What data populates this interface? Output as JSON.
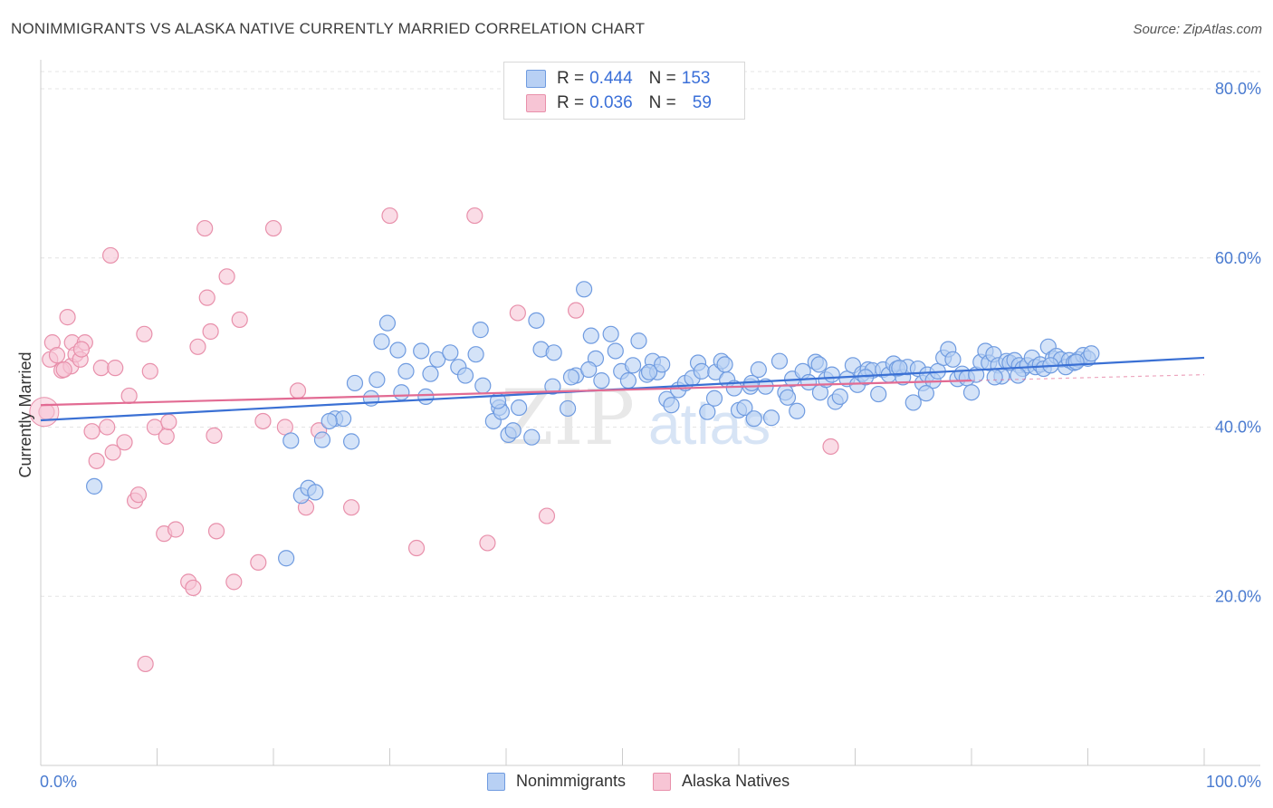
{
  "header": {
    "title": "NONIMMIGRANTS VS ALASKA NATIVE CURRENTLY MARRIED CORRELATION CHART",
    "source": "Source: ZipAtlas.com"
  },
  "legend": {
    "rows": [
      {
        "r_label": "R =",
        "r_value": "0.444",
        "n_label": "N =",
        "n_value": "153"
      },
      {
        "r_label": "R =",
        "r_value": "0.036",
        "n_label": "N =",
        "n_value": "59"
      }
    ]
  },
  "bottom_legend": [
    "Nonimmigrants",
    "Alaska Natives"
  ],
  "colors": {
    "blue_fill": "#b8d0f4",
    "blue_stroke": "#6f9be0",
    "blue_line": "#3a70d4",
    "pink_fill": "#f7c5d5",
    "pink_stroke": "#e890ab",
    "pink_line": "#e26b93",
    "tick_text": "#4a7bd0",
    "grid": "#e4e4e4"
  },
  "chart_data": {
    "type": "scatter",
    "title": "NONIMMIGRANTS VS ALASKA NATIVE CURRENTLY MARRIED CORRELATION CHART",
    "xlabel": "",
    "ylabel": "Currently Married",
    "xlim": [
      0,
      100
    ],
    "ylim": [
      0,
      80
    ],
    "x_ticks": [
      "0.0%",
      "100.0%"
    ],
    "y_ticks": [
      "20.0%",
      "40.0%",
      "60.0%",
      "80.0%"
    ],
    "y_tick_values": [
      20,
      40,
      60,
      80
    ],
    "grid": true,
    "legend_position": "top-center",
    "watermark": "ZIPatlas",
    "series": [
      {
        "name": "Nonimmigrants",
        "R": 0.444,
        "N": 153,
        "trend": {
          "x": [
            0,
            100
          ],
          "y": [
            40.8,
            48.2
          ]
        },
        "points": [
          [
            4.6,
            33.0
          ],
          [
            21.1,
            24.5
          ],
          [
            22.4,
            31.9
          ],
          [
            23.0,
            32.8
          ],
          [
            23.6,
            32.3
          ],
          [
            21.5,
            38.4
          ],
          [
            24.2,
            38.5
          ],
          [
            25.3,
            41.0
          ],
          [
            26.0,
            41.0
          ],
          [
            26.7,
            38.3
          ],
          [
            27.0,
            45.2
          ],
          [
            24.8,
            40.7
          ],
          [
            28.4,
            43.4
          ],
          [
            28.9,
            45.6
          ],
          [
            29.3,
            50.1
          ],
          [
            29.8,
            52.3
          ],
          [
            30.7,
            49.1
          ],
          [
            31.4,
            46.6
          ],
          [
            32.7,
            49.0
          ],
          [
            33.1,
            43.6
          ],
          [
            34.1,
            48.0
          ],
          [
            35.2,
            48.8
          ],
          [
            35.9,
            47.1
          ],
          [
            36.5,
            46.1
          ],
          [
            37.4,
            48.6
          ],
          [
            38.0,
            44.9
          ],
          [
            37.8,
            51.5
          ],
          [
            38.9,
            40.7
          ],
          [
            39.4,
            42.3
          ],
          [
            39.6,
            41.8
          ],
          [
            40.2,
            39.1
          ],
          [
            40.6,
            39.6
          ],
          [
            41.1,
            42.3
          ],
          [
            42.2,
            38.8
          ],
          [
            42.6,
            52.6
          ],
          [
            43.0,
            49.2
          ],
          [
            44.1,
            48.8
          ],
          [
            44.0,
            44.8
          ],
          [
            45.3,
            42.2
          ],
          [
            46.0,
            46.1
          ],
          [
            46.7,
            56.3
          ],
          [
            47.3,
            50.8
          ],
          [
            47.7,
            48.1
          ],
          [
            48.2,
            45.5
          ],
          [
            49.0,
            51.0
          ],
          [
            49.4,
            49.0
          ],
          [
            49.9,
            46.6
          ],
          [
            50.5,
            45.5
          ],
          [
            50.9,
            47.3
          ],
          [
            51.4,
            50.2
          ],
          [
            52.1,
            46.2
          ],
          [
            52.6,
            47.8
          ],
          [
            53.0,
            46.5
          ],
          [
            53.4,
            47.4
          ],
          [
            53.8,
            43.3
          ],
          [
            54.2,
            42.6
          ],
          [
            54.8,
            44.4
          ],
          [
            55.4,
            45.2
          ],
          [
            56.0,
            45.8
          ],
          [
            56.5,
            47.6
          ],
          [
            56.8,
            46.6
          ],
          [
            57.3,
            41.8
          ],
          [
            58.0,
            46.5
          ],
          [
            58.5,
            47.8
          ],
          [
            59.0,
            45.6
          ],
          [
            59.6,
            44.6
          ],
          [
            60.0,
            42.0
          ],
          [
            60.5,
            42.3
          ],
          [
            61.0,
            44.8
          ],
          [
            61.3,
            41.0
          ],
          [
            61.7,
            46.8
          ],
          [
            62.3,
            44.8
          ],
          [
            62.8,
            41.1
          ],
          [
            63.5,
            47.8
          ],
          [
            64.0,
            44.1
          ],
          [
            64.6,
            45.7
          ],
          [
            65.0,
            41.9
          ],
          [
            65.5,
            46.6
          ],
          [
            66.0,
            45.3
          ],
          [
            66.6,
            47.7
          ],
          [
            67.0,
            44.1
          ],
          [
            67.5,
            45.6
          ],
          [
            68.0,
            46.2
          ],
          [
            68.3,
            43.0
          ],
          [
            68.7,
            43.6
          ],
          [
            69.3,
            45.7
          ],
          [
            69.8,
            47.3
          ],
          [
            70.2,
            45.0
          ],
          [
            70.6,
            46.3
          ],
          [
            71.1,
            46.8
          ],
          [
            71.5,
            46.7
          ],
          [
            72.0,
            43.9
          ],
          [
            72.4,
            46.8
          ],
          [
            72.9,
            46.2
          ],
          [
            73.3,
            47.5
          ],
          [
            73.6,
            46.9
          ],
          [
            74.1,
            45.9
          ],
          [
            74.5,
            47.1
          ],
          [
            75.0,
            42.9
          ],
          [
            75.4,
            46.9
          ],
          [
            75.8,
            45.2
          ],
          [
            76.2,
            46.2
          ],
          [
            76.7,
            45.5
          ],
          [
            77.1,
            46.6
          ],
          [
            77.6,
            48.2
          ],
          [
            78.0,
            49.2
          ],
          [
            78.4,
            48.0
          ],
          [
            78.8,
            45.7
          ],
          [
            79.2,
            46.3
          ],
          [
            79.6,
            45.8
          ],
          [
            80.0,
            44.1
          ],
          [
            80.4,
            46.2
          ],
          [
            80.8,
            47.7
          ],
          [
            81.2,
            49.0
          ],
          [
            81.5,
            47.6
          ],
          [
            81.9,
            48.6
          ],
          [
            82.3,
            47.3
          ],
          [
            82.6,
            46.0
          ],
          [
            83.0,
            47.8
          ],
          [
            83.3,
            47.6
          ],
          [
            83.7,
            47.9
          ],
          [
            84.1,
            47.3
          ],
          [
            84.4,
            46.9
          ],
          [
            84.8,
            47.3
          ],
          [
            85.2,
            48.2
          ],
          [
            85.5,
            47.1
          ],
          [
            85.9,
            47.4
          ],
          [
            86.2,
            46.9
          ],
          [
            86.6,
            49.5
          ],
          [
            87.0,
            48.1
          ],
          [
            87.3,
            48.4
          ],
          [
            87.7,
            48.0
          ],
          [
            88.1,
            47.1
          ],
          [
            88.4,
            47.9
          ],
          [
            88.8,
            47.6
          ],
          [
            89.2,
            48.0
          ],
          [
            89.6,
            48.5
          ],
          [
            90.0,
            48.1
          ],
          [
            90.3,
            48.7
          ],
          [
            76.1,
            44.0
          ],
          [
            66.9,
            47.4
          ],
          [
            31.0,
            44.1
          ],
          [
            33.5,
            46.3
          ],
          [
            52.3,
            46.5
          ],
          [
            70.9,
            45.9
          ],
          [
            82.0,
            45.9
          ],
          [
            86.8,
            47.3
          ],
          [
            61.1,
            45.2
          ],
          [
            45.6,
            45.9
          ],
          [
            39.3,
            43.1
          ],
          [
            57.9,
            43.4
          ],
          [
            64.2,
            43.5
          ],
          [
            58.8,
            47.4
          ],
          [
            73.8,
            47.0
          ],
          [
            84.0,
            46.1
          ],
          [
            89.0,
            47.7
          ],
          [
            47.1,
            46.8
          ]
        ]
      },
      {
        "name": "Alaska Natives",
        "R": 0.036,
        "N": 59,
        "trend": {
          "x": [
            0,
            80
          ],
          "y": [
            42.6,
            45.5
          ]
        },
        "points": [
          [
            0.5,
            41.8
          ],
          [
            0.8,
            48.0
          ],
          [
            1.0,
            50.0
          ],
          [
            1.4,
            48.5
          ],
          [
            1.8,
            46.7
          ],
          [
            2.3,
            53.0
          ],
          [
            2.6,
            47.2
          ],
          [
            2.7,
            50.0
          ],
          [
            3.0,
            48.6
          ],
          [
            3.4,
            48.0
          ],
          [
            3.8,
            50.0
          ],
          [
            4.4,
            39.5
          ],
          [
            4.8,
            36.0
          ],
          [
            5.2,
            47.0
          ],
          [
            5.7,
            40.0
          ],
          [
            6.2,
            37.0
          ],
          [
            6.4,
            47.0
          ],
          [
            7.2,
            38.2
          ],
          [
            7.6,
            43.7
          ],
          [
            8.1,
            31.3
          ],
          [
            8.4,
            32.0
          ],
          [
            8.9,
            51.0
          ],
          [
            9.4,
            46.6
          ],
          [
            9.8,
            40.0
          ],
          [
            10.6,
            27.4
          ],
          [
            10.8,
            38.9
          ],
          [
            11.0,
            40.6
          ],
          [
            11.6,
            27.9
          ],
          [
            12.7,
            21.7
          ],
          [
            13.1,
            21.0
          ],
          [
            13.5,
            49.5
          ],
          [
            14.1,
            63.5
          ],
          [
            14.3,
            55.3
          ],
          [
            14.6,
            51.3
          ],
          [
            14.9,
            39.0
          ],
          [
            15.1,
            27.7
          ],
          [
            16.0,
            57.8
          ],
          [
            16.6,
            21.7
          ],
          [
            17.1,
            52.7
          ],
          [
            18.7,
            24.0
          ],
          [
            19.1,
            40.7
          ],
          [
            20.0,
            63.5
          ],
          [
            21.0,
            40.0
          ],
          [
            22.1,
            44.3
          ],
          [
            22.8,
            30.5
          ],
          [
            23.9,
            39.6
          ],
          [
            26.7,
            30.5
          ],
          [
            30.0,
            65.0
          ],
          [
            32.3,
            25.7
          ],
          [
            37.3,
            65.0
          ],
          [
            38.4,
            26.3
          ],
          [
            41.0,
            53.5
          ],
          [
            43.5,
            29.5
          ],
          [
            46.0,
            53.8
          ],
          [
            67.9,
            37.7
          ],
          [
            6.0,
            60.3
          ],
          [
            2.0,
            46.8
          ],
          [
            3.5,
            49.2
          ],
          [
            9.0,
            12.0
          ]
        ]
      }
    ]
  }
}
